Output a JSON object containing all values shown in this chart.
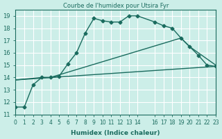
{
  "title": "Courbe de l'humidex pour Utsira Fyr",
  "xlabel": "Humidex (Indice chaleur)",
  "bg_color": "#cceee8",
  "grid_color": "#ffffff",
  "line_color": "#1a6b5e",
  "line1_x": [
    0,
    1,
    2,
    3,
    4,
    5,
    6,
    7,
    8,
    9,
    10,
    11,
    12,
    13,
    14,
    16,
    17,
    18,
    19,
    20,
    21,
    22,
    23
  ],
  "line1_y": [
    11.6,
    11.6,
    13.4,
    14.0,
    14.0,
    14.1,
    15.1,
    16.0,
    17.6,
    18.8,
    18.6,
    18.5,
    18.5,
    19.0,
    19.0,
    18.5,
    18.2,
    18.0,
    17.2,
    16.5,
    15.8,
    15.0,
    14.9
  ],
  "line2_x": [
    0,
    23
  ],
  "line2_y": [
    13.8,
    14.9
  ],
  "line3_x": [
    0,
    3,
    4,
    19,
    20,
    23
  ],
  "line3_y": [
    13.8,
    14.0,
    14.0,
    17.2,
    16.5,
    15.0
  ],
  "xlim": [
    0,
    23
  ],
  "ylim": [
    11,
    19.5
  ],
  "yticks": [
    11,
    12,
    13,
    14,
    15,
    16,
    17,
    18,
    19
  ],
  "xticks": [
    0,
    1,
    2,
    3,
    4,
    5,
    6,
    7,
    8,
    9,
    10,
    11,
    12,
    13,
    14,
    16,
    17,
    18,
    19,
    20,
    21,
    22,
    23
  ]
}
